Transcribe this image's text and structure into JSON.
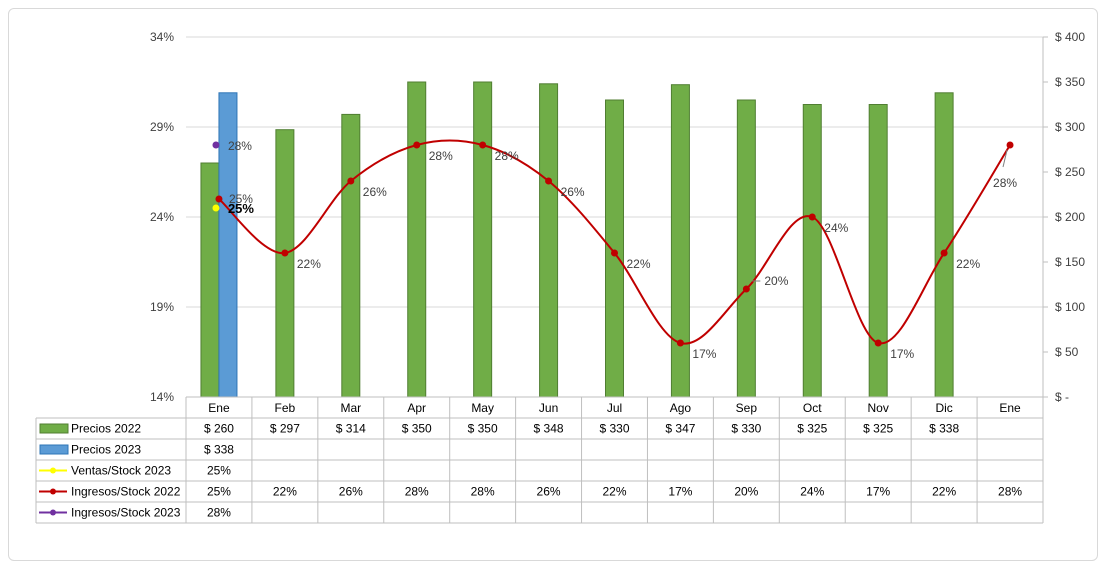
{
  "chart_data": {
    "type": "bar",
    "categories": [
      "Ene",
      "Feb",
      "Mar",
      "Apr",
      "May",
      "Jun",
      "Jul",
      "Ago",
      "Sep",
      "Oct",
      "Nov",
      "Dic",
      "Ene"
    ],
    "left_axis": {
      "min": 0.14,
      "max": 0.34,
      "step": 0.05,
      "ticks": [
        "14%",
        "19%",
        "24%",
        "29%",
        "34%"
      ]
    },
    "right_axis": {
      "min": 0,
      "max": 400,
      "step": 50,
      "ticks": [
        "$ -",
        "$ 50",
        "$ 100",
        "$ 150",
        "$ 200",
        "$ 250",
        "$ 300",
        "$ 350",
        "$ 400"
      ]
    },
    "grid": true,
    "legend": "data-table",
    "series": [
      {
        "name": "Precios 2022",
        "kind": "bar",
        "axis": "right",
        "color": "#70ad47",
        "stroke": "#507e32",
        "values": [
          260,
          297,
          314,
          350,
          350,
          348,
          330,
          347,
          330,
          325,
          325,
          338,
          null
        ],
        "labels": [
          "$ 260",
          "$ 297",
          "$ 314",
          "$ 350",
          "$ 350",
          "$ 348",
          "$ 330",
          "$ 347",
          "$ 330",
          "$ 325",
          "$ 325",
          "$ 338",
          ""
        ]
      },
      {
        "name": "Precios 2023",
        "kind": "bar",
        "axis": "right",
        "color": "#5b9bd5",
        "stroke": "#2e75b6",
        "values": [
          338,
          null,
          null,
          null,
          null,
          null,
          null,
          null,
          null,
          null,
          null,
          null,
          null
        ],
        "labels": [
          "$ 338",
          "",
          "",
          "",
          "",
          "",
          "",
          "",
          "",
          "",
          "",
          "",
          ""
        ]
      },
      {
        "name": "Ventas/Stock 2023",
        "kind": "line",
        "axis": "left",
        "color": "#ffff00",
        "values": [
          0.245,
          null,
          null,
          null,
          null,
          null,
          null,
          null,
          null,
          null,
          null,
          null,
          null
        ],
        "labels": [
          "25%",
          "",
          "",
          "",
          "",
          "",
          "",
          "",
          "",
          "",
          "",
          "",
          ""
        ]
      },
      {
        "name": "Ingresos/Stock 2022",
        "kind": "line",
        "axis": "left",
        "color": "#c00000",
        "smooth": true,
        "values": [
          0.25,
          0.22,
          0.26,
          0.28,
          0.28,
          0.26,
          0.22,
          0.17,
          0.2,
          0.24,
          0.17,
          0.22,
          0.28
        ],
        "labels": [
          "25%",
          "22%",
          "26%",
          "28%",
          "28%",
          "26%",
          "22%",
          "17%",
          "20%",
          "24%",
          "17%",
          "22%",
          "28%"
        ]
      },
      {
        "name": "Ingresos/Stock 2023",
        "kind": "line",
        "axis": "left",
        "color": "#7030a0",
        "values": [
          0.28,
          null,
          null,
          null,
          null,
          null,
          null,
          null,
          null,
          null,
          null,
          null,
          null
        ],
        "labels": [
          "28%",
          "",
          "",
          "",
          "",
          "",
          "",
          "",
          "",
          "",
          "",
          "",
          ""
        ]
      }
    ]
  }
}
